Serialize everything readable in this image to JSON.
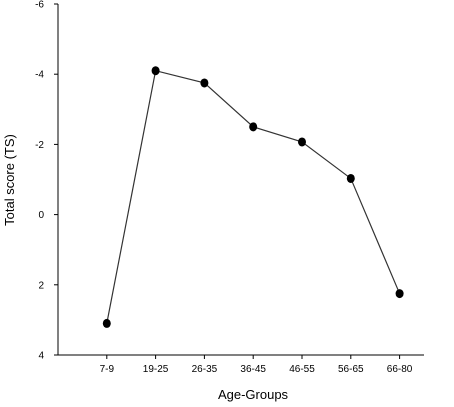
{
  "chart_data": {
    "type": "line",
    "title": "",
    "xlabel": "Age-Groups",
    "ylabel": "Total score (TS)",
    "categories": [
      "7-9",
      "19-25",
      "26-35",
      "36-45",
      "46-55",
      "56-65",
      "66-80"
    ],
    "series": [
      {
        "values": [
          3.1,
          -4.1,
          -3.75,
          -2.5,
          -2.07,
          -1.03,
          2.25
        ]
      }
    ],
    "ylim": [
      4,
      -6
    ],
    "y_axis_inverted": true,
    "y_ticks": [
      -6,
      -4,
      -2,
      0,
      2,
      4
    ],
    "y_tick_labels": [
      "-6",
      "-4",
      "-2",
      "0",
      "2",
      "4"
    ],
    "grid": false,
    "legend": "none",
    "colors": {
      "line": "#333333",
      "marker": "#000000",
      "axis": "#000000"
    }
  }
}
